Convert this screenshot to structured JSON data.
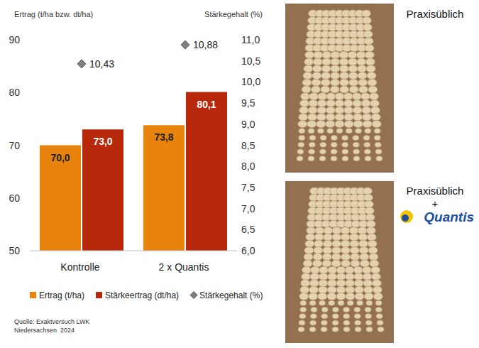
{
  "chart_data": {
    "type": "bar",
    "y_label": "Ertrag (t/ha bzw. dt/ha)",
    "y2_label": "Stärkegehalt (%)",
    "categories": [
      "Kontrolle",
      "2 x Quantis"
    ],
    "ylim": [
      50,
      90
    ],
    "yticks": [
      50,
      60,
      70,
      80,
      90
    ],
    "y2lim": [
      6,
      11
    ],
    "y2ticks": [
      {
        "value": 6,
        "label": "6,0"
      },
      {
        "value": 6.5,
        "label": "6,5"
      },
      {
        "value": 7,
        "label": "7,0"
      },
      {
        "value": 7.5,
        "label": "7,5"
      },
      {
        "value": 8,
        "label": "8,0"
      },
      {
        "value": 8.5,
        "label": "8,5"
      },
      {
        "value": 9,
        "label": "9,0"
      },
      {
        "value": 9.5,
        "label": "9,5"
      },
      {
        "value": 10,
        "label": "10,0"
      },
      {
        "value": 10.5,
        "label": "10,5"
      },
      {
        "value": 11,
        "label": "11,0"
      }
    ],
    "grid": false,
    "legend": "bottom",
    "data_labels": true,
    "series": [
      {
        "name": "Ertrag (t/ha)",
        "type": "bar",
        "color": "#e8830e",
        "values": [
          70.0,
          73.8
        ],
        "value_labels": [
          "70,0",
          "73,8"
        ]
      },
      {
        "name": "Stärkeertrag (dt/ha)",
        "type": "bar",
        "color": "#b8290b",
        "values": [
          73.0,
          80.1
        ],
        "value_labels": [
          "73,0",
          "80,1"
        ]
      },
      {
        "name": "Stärkegehalt (%)",
        "type": "scatter",
        "marker": "diamond",
        "color": "#7f7f7f",
        "axis": "y2",
        "values": [
          10.43,
          10.88
        ],
        "value_labels": [
          "10,43",
          "10,88"
        ]
      }
    ],
    "source": [
      "Quelle: Exaktversuch LWK",
      "Niedersachsen  2024"
    ]
  },
  "images": [
    {
      "lines": [
        "Praxisüblich"
      ]
    },
    {
      "lines": [
        "Praxisüblich",
        "+"
      ],
      "logo": "Quantis"
    }
  ]
}
